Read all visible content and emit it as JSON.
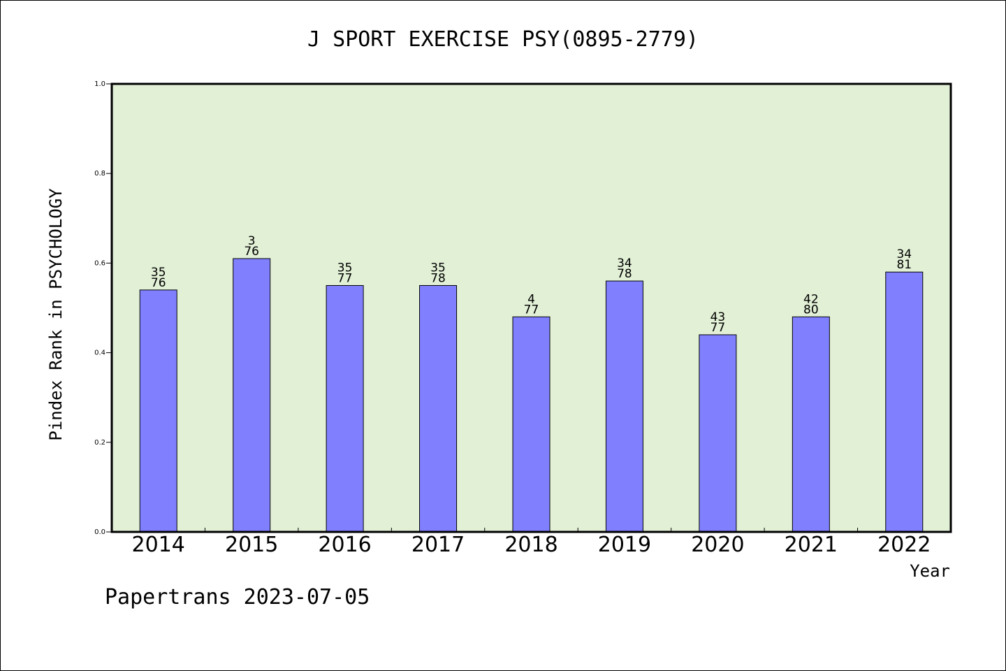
{
  "chart_data": {
    "type": "bar",
    "title": "J SPORT EXERCISE PSY(0895-2779)",
    "xlabel": "Year",
    "ylabel": "Pindex Rank in PSYCHOLOGY",
    "ylim": [
      0,
      1.0
    ],
    "yticks": [
      "0.0",
      "0.2",
      "0.4",
      "0.6",
      "0.8",
      "1.0"
    ],
    "categories": [
      "2014",
      "2015",
      "2016",
      "2017",
      "2018",
      "2019",
      "2020",
      "2021",
      "2022"
    ],
    "values": [
      0.54,
      0.61,
      0.55,
      0.55,
      0.48,
      0.56,
      0.44,
      0.48,
      0.58
    ],
    "labels_top": [
      "35",
      "3",
      "35",
      "35",
      "4",
      "34",
      "43",
      "42",
      "34"
    ],
    "labels_bottom": [
      "76",
      "76",
      "77",
      "78",
      "77",
      "78",
      "77",
      "80",
      "81"
    ],
    "grid": false,
    "colors": {
      "bar": "#8080ff",
      "plot_bg": "#e2f0d6",
      "frame": "#000000"
    }
  },
  "footer": "Papertrans 2023-07-05"
}
